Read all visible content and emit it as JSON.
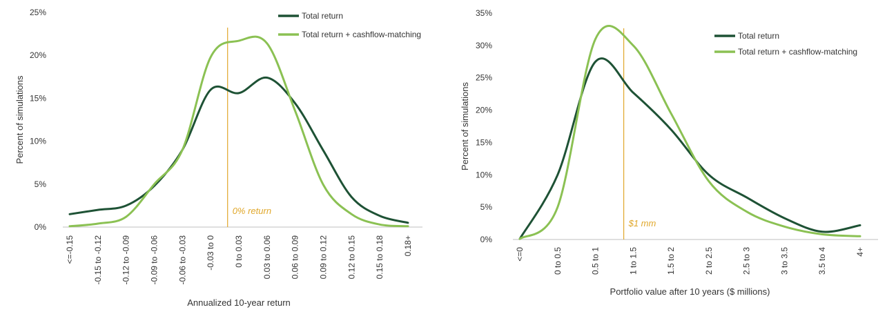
{
  "chart_data": [
    {
      "type": "line",
      "title": "",
      "xlabel": "Annualized 10-year return",
      "ylabel": "Percent of simulations",
      "ylim": [
        0,
        25
      ],
      "yticks": [
        0,
        5,
        10,
        15,
        20,
        25
      ],
      "ytick_labels": [
        "0%",
        "5%",
        "10%",
        "15%",
        "20%",
        "25%"
      ],
      "categories": [
        "<=-0.15",
        "-0.15 to -0.12",
        "-0.12 to -0.09",
        "-0.09 to -0.06",
        "-0.06 to -0.03",
        "-0.03 to 0",
        "0 to 0.03",
        "0.03 to 0.06",
        "0.06 to 0.09",
        "0.09 to 0.12",
        "0.12 to 0.15",
        "0.15 to 0.18",
        "0.18+"
      ],
      "grid": false,
      "legend_position": "top-right",
      "series": [
        {
          "name": "Total return",
          "color": "#1e5235",
          "values": [
            1.5,
            2.0,
            2.5,
            4.8,
            9.0,
            16.0,
            15.6,
            17.4,
            14.4,
            8.9,
            3.5,
            1.3,
            0.5
          ]
        },
        {
          "name": "Total return + cashflow-matching",
          "color": "#8bc153",
          "values": [
            0.1,
            0.4,
            1.2,
            5.0,
            9.0,
            19.8,
            21.7,
            21.4,
            13.5,
            4.9,
            1.5,
            0.3,
            0.1
          ]
        }
      ],
      "reference_line": {
        "position": 5.6,
        "color": "#e0a72a",
        "label": "0% return"
      }
    },
    {
      "type": "line",
      "title": "",
      "xlabel": "Portfolio value after 10 years ($ millions)",
      "ylabel": "Percent of simulations",
      "ylim": [
        0,
        35
      ],
      "yticks": [
        0,
        5,
        10,
        15,
        20,
        25,
        30,
        35
      ],
      "ytick_labels": [
        "0%",
        "5%",
        "10%",
        "15%",
        "20%",
        "25%",
        "30%",
        "35%"
      ],
      "categories": [
        "<=0",
        "0 to 0.5",
        "0.5 to 1",
        "1 to 1.5",
        "1.5 to 2",
        "2 to 2.5",
        "2.5 to 3",
        "3 to 3.5",
        "3.5 to 4",
        "4+"
      ],
      "grid": false,
      "legend_position": "top-right",
      "series": [
        {
          "name": "Total return",
          "color": "#1e5235",
          "values": [
            0.1,
            10.0,
            27.5,
            22.7,
            17.0,
            10.0,
            6.5,
            3.3,
            1.2,
            2.2
          ]
        },
        {
          "name": "Total return + cashflow-matching",
          "color": "#8bc153",
          "values": [
            0.1,
            5.0,
            31.0,
            30.0,
            19.5,
            9.0,
            4.3,
            2.0,
            0.8,
            0.5
          ]
        }
      ],
      "reference_line": {
        "position": 2.75,
        "color": "#e0a72a",
        "label": "$1 mm"
      }
    }
  ]
}
